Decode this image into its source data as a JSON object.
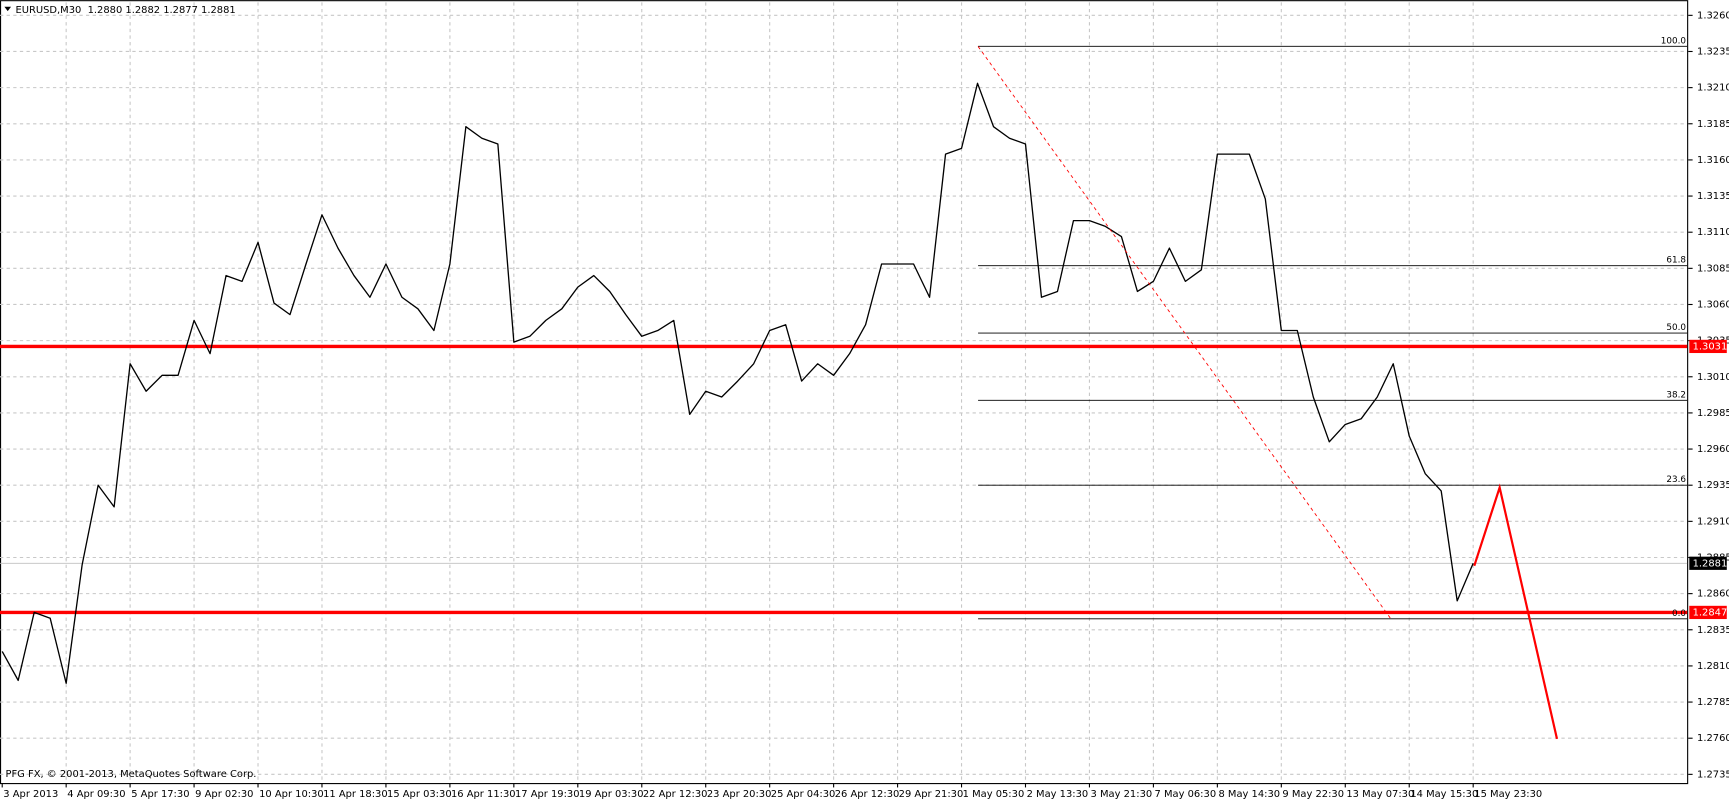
{
  "chart_data": {
    "type": "line",
    "title": "EURUSD,M30  1.2880 1.2882 1.2877 1.2881",
    "footer": "PFG FX, © 2001-2013, MetaQuotes Software Corp.",
    "categories": [
      "3 Apr 2013",
      null,
      null,
      null,
      "4 Apr 09:30",
      null,
      null,
      null,
      "5 Apr 17:30",
      null,
      null,
      null,
      "9 Apr 02:30",
      null,
      null,
      null,
      "10 Apr 10:30",
      null,
      null,
      null,
      "11 Apr 18:30",
      null,
      null,
      null,
      "15 Apr 03:30",
      null,
      null,
      null,
      "16 Apr 11:30",
      null,
      null,
      null,
      "17 Apr 19:30",
      null,
      null,
      null,
      "19 Apr 03:30",
      null,
      null,
      null,
      "22 Apr 12:30",
      null,
      null,
      null,
      "23 Apr 20:30",
      null,
      null,
      null,
      "25 Apr 04:30",
      null,
      null,
      null,
      "26 Apr 12:30",
      null,
      null,
      null,
      "29 Apr 21:30",
      null,
      null,
      null,
      "1 May 05:30",
      null,
      null,
      null,
      "2 May 13:30",
      null,
      null,
      null,
      "3 May 21:30",
      null,
      null,
      null,
      "7 May 06:30",
      null,
      null,
      null,
      "8 May 14:30",
      null,
      null,
      null,
      "9 May 22:30",
      null,
      null,
      null,
      "13 May 07:30",
      null,
      null,
      null,
      "14 May 15:30",
      null,
      null,
      null,
      "15 May 23:30",
      null,
      null,
      null,
      null,
      null,
      null,
      null,
      null,
      null,
      null,
      null,
      null,
      null
    ],
    "series": [
      {
        "color": "#000000",
        "values": [
          1.282,
          1.28,
          1.2847,
          1.2843,
          1.2798,
          1.288,
          1.2935,
          1.292,
          1.3019,
          1.3,
          1.3011,
          1.3011,
          1.3049,
          1.3026,
          1.308,
          1.3076,
          1.3103,
          1.3061,
          1.3053,
          1.3088,
          1.3122,
          1.3099,
          1.308,
          1.3065,
          1.3088,
          1.3065,
          1.3057,
          1.3042,
          1.3088,
          1.3183,
          1.3175,
          1.3171,
          1.3034,
          1.3038,
          1.3049,
          1.3057,
          1.3072,
          1.308,
          1.3069,
          1.3053,
          1.3038,
          1.3042,
          1.3049,
          1.2984,
          1.3,
          1.2996,
          1.3007,
          1.3019,
          1.3042,
          1.3046,
          1.3007,
          1.3019,
          1.3011,
          1.3026,
          1.3046,
          1.3088,
          1.3088,
          1.3088,
          1.3065,
          1.3164,
          1.3168,
          1.3213,
          1.3183,
          1.3175,
          1.3171,
          1.3065,
          1.3069,
          1.3118,
          1.3118,
          1.3114,
          1.3107,
          1.3069,
          1.3076,
          1.3099,
          1.3076,
          1.3084,
          1.3164,
          1.3164,
          1.3164,
          1.3133,
          1.3042,
          1.3042,
          1.2996,
          1.2965,
          1.2977,
          1.2981,
          1.2996,
          1.3019,
          1.2969,
          1.2943,
          1.2931,
          1.2855,
          1.2881,
          null,
          null,
          null,
          null,
          null,
          null,
          null,
          null,
          null,
          null,
          null,
          null,
          null
        ]
      }
    ],
    "ylim": [
      1.2729,
      1.3269
    ],
    "yticks": [
      {
        "value": 1.326,
        "label": "1.3260"
      },
      1.3235,
      {
        "value": 1.321,
        "label": "1.3210"
      },
      1.3185,
      {
        "value": 1.316,
        "label": "1.3160"
      },
      1.3135,
      {
        "value": 1.311,
        "label": "1.3110"
      },
      1.3085,
      {
        "value": 1.306,
        "label": "1.3060"
      },
      1.3035,
      {
        "value": 1.301,
        "label": "1.3010"
      },
      1.2985,
      {
        "value": 1.296,
        "label": "1.2960"
      },
      1.2935,
      {
        "value": 1.291,
        "label": "1.2910"
      },
      1.2885,
      {
        "value": 1.286,
        "label": "1.2860"
      },
      1.2835,
      {
        "value": 1.281,
        "label": "1.2810"
      },
      1.2785,
      {
        "value": 1.276,
        "label": "1.2760"
      },
      1.2735
    ],
    "grid": true,
    "hlines": [
      {
        "value": 1.3031,
        "color": "#ff0000"
      },
      {
        "value": 1.2847,
        "color": "#ff0000"
      }
    ],
    "current_price": 1.2881,
    "fib_levels": [
      {
        "label": "100.0",
        "value": 1.32386
      },
      {
        "label": "61.8",
        "value": 1.30868
      },
      {
        "label": "50.0",
        "value": 1.30402
      },
      {
        "label": "38.2",
        "value": 1.29937
      },
      {
        "label": "23.6",
        "value": 1.2935
      },
      {
        "label": "0.0",
        "value": 1.28426
      }
    ]
  }
}
